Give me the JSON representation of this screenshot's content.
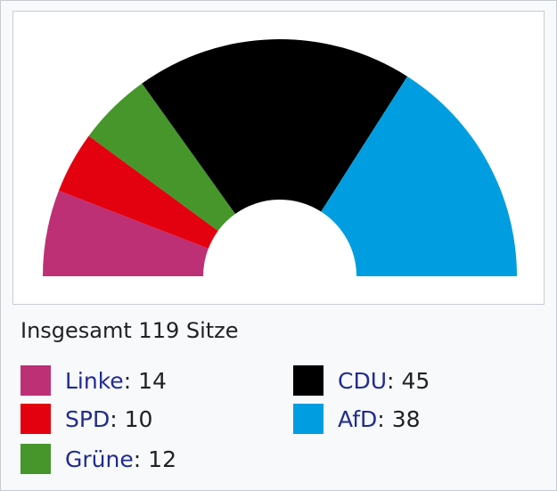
{
  "caption": "Insgesamt 119 Sitze",
  "chart_data": {
    "type": "pie",
    "variant": "parliament-semicircle",
    "total_label": "Insgesamt 119 Sitze",
    "total": 119,
    "categories": [
      "Linke",
      "SPD",
      "Grüne",
      "CDU",
      "AfD"
    ],
    "values": [
      14,
      10,
      12,
      45,
      38
    ],
    "colors": [
      "#be3075",
      "#e3000f",
      "#46962b",
      "#000000",
      "#009ee0"
    ]
  },
  "legend": [
    {
      "party": "Linke",
      "seats": "14",
      "color": "#be3075"
    },
    {
      "party": "SPD",
      "seats": "10",
      "color": "#e3000f"
    },
    {
      "party": "Grüne",
      "seats": "12",
      "color": "#46962b"
    },
    {
      "party": "CDU",
      "seats": "45",
      "color": "#000000"
    },
    {
      "party": "AfD",
      "seats": "38",
      "color": "#009ee0"
    }
  ],
  "colon": ":"
}
